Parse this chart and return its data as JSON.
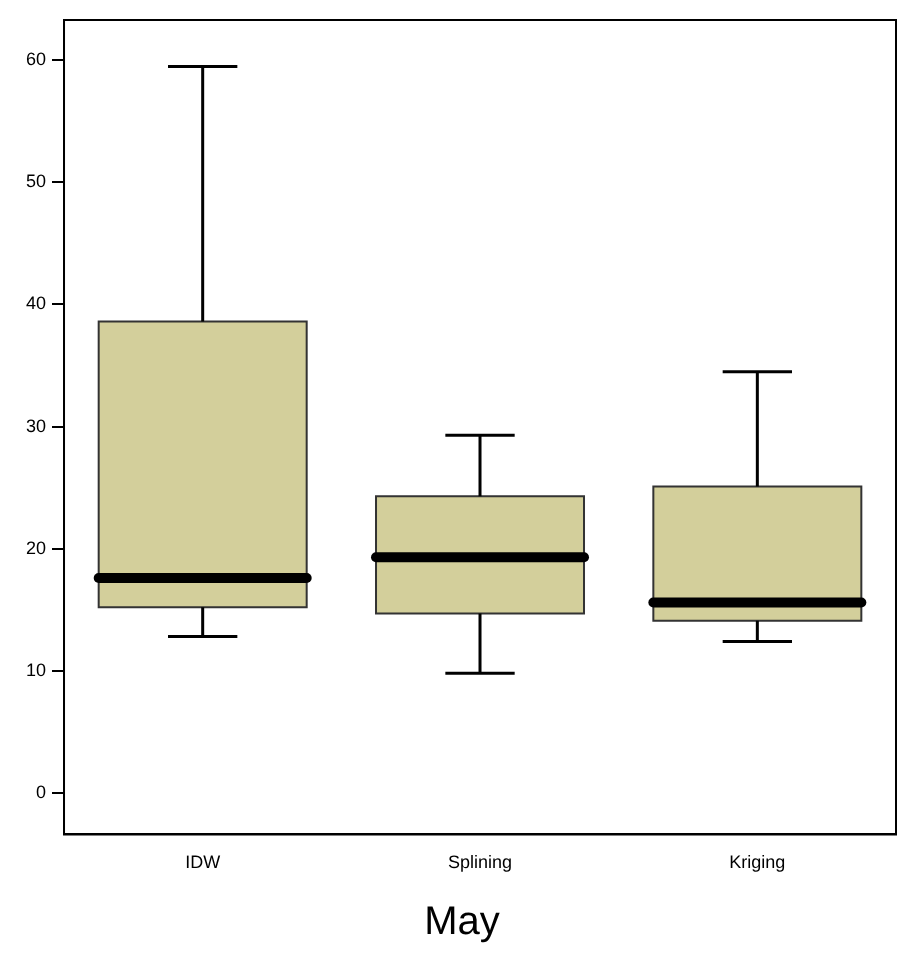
{
  "chart_data": {
    "type": "box",
    "xlabel": "May",
    "categories": [
      "IDW",
      "Splining",
      "Kriging"
    ],
    "color": "#d3cf9b",
    "boxes": [
      {
        "low": 12.8,
        "q1": 15.2,
        "median": 17.6,
        "q3": 38.6,
        "high": 59.5
      },
      {
        "low": 9.8,
        "q1": 14.7,
        "median": 19.3,
        "q3": 24.3,
        "high": 29.3
      },
      {
        "low": 12.4,
        "q1": 14.1,
        "median": 15.6,
        "q3": 25.1,
        "high": 34.5
      }
    ],
    "ylim": [
      -3.4,
      63.3
    ],
    "yticks": [
      0,
      10,
      20,
      30,
      40,
      50,
      60
    ],
    "grid": false,
    "legend": false
  }
}
